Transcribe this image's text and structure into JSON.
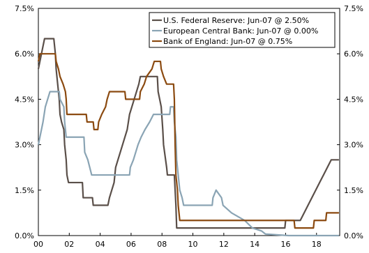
{
  "chart_data": {
    "type": "line",
    "xlim": [
      2000,
      2019.5
    ],
    "ylim": [
      0,
      7.5
    ],
    "x_ticks": [
      {
        "value": 2000,
        "label": "00"
      },
      {
        "value": 2002,
        "label": "02"
      },
      {
        "value": 2004,
        "label": "04"
      },
      {
        "value": 2006,
        "label": "06"
      },
      {
        "value": 2008,
        "label": "08"
      },
      {
        "value": 2010,
        "label": "10"
      },
      {
        "value": 2012,
        "label": "12"
      },
      {
        "value": 2014,
        "label": "14"
      },
      {
        "value": 2016,
        "label": "16"
      },
      {
        "value": 2018,
        "label": "18"
      }
    ],
    "y_ticks": [
      {
        "value": 0,
        "label": "0.0%"
      },
      {
        "value": 1.5,
        "label": "1.5%"
      },
      {
        "value": 3.0,
        "label": "3.0%"
      },
      {
        "value": 4.5,
        "label": "4.5%"
      },
      {
        "value": 6.0,
        "label": "6.0%"
      },
      {
        "value": 7.5,
        "label": "7.5%"
      }
    ],
    "legend_position": "top-right",
    "series": [
      {
        "name": "U.S. Federal Reserve: Jun-07 @ 2.50%",
        "color": "#5a4f49",
        "points": [
          [
            2000.0,
            5.5
          ],
          [
            2000.1,
            5.75
          ],
          [
            2000.2,
            6.0
          ],
          [
            2000.4,
            6.5
          ],
          [
            2001.0,
            6.5
          ],
          [
            2001.1,
            6.0
          ],
          [
            2001.15,
            5.5
          ],
          [
            2001.25,
            5.0
          ],
          [
            2001.35,
            4.5
          ],
          [
            2001.4,
            4.0
          ],
          [
            2001.5,
            3.75
          ],
          [
            2001.65,
            3.5
          ],
          [
            2001.7,
            3.0
          ],
          [
            2001.8,
            2.5
          ],
          [
            2001.85,
            2.0
          ],
          [
            2001.95,
            1.75
          ],
          [
            2002.85,
            1.75
          ],
          [
            2002.9,
            1.25
          ],
          [
            2003.5,
            1.25
          ],
          [
            2003.55,
            1.0
          ],
          [
            2004.5,
            1.0
          ],
          [
            2004.6,
            1.25
          ],
          [
            2004.75,
            1.5
          ],
          [
            2004.9,
            1.75
          ],
          [
            2005.0,
            2.25
          ],
          [
            2005.15,
            2.5
          ],
          [
            2005.3,
            2.75
          ],
          [
            2005.45,
            3.0
          ],
          [
            2005.6,
            3.25
          ],
          [
            2005.75,
            3.5
          ],
          [
            2005.9,
            4.0
          ],
          [
            2006.05,
            4.25
          ],
          [
            2006.2,
            4.5
          ],
          [
            2006.35,
            4.75
          ],
          [
            2006.5,
            5.0
          ],
          [
            2006.6,
            5.25
          ],
          [
            2007.7,
            5.25
          ],
          [
            2007.75,
            4.75
          ],
          [
            2007.85,
            4.5
          ],
          [
            2007.95,
            4.25
          ],
          [
            2008.05,
            3.5
          ],
          [
            2008.1,
            3.0
          ],
          [
            2008.3,
            2.25
          ],
          [
            2008.35,
            2.0
          ],
          [
            2008.8,
            2.0
          ],
          [
            2008.85,
            1.5
          ],
          [
            2008.9,
            1.0
          ],
          [
            2008.95,
            0.25
          ],
          [
            2015.95,
            0.25
          ],
          [
            2016.0,
            0.5
          ],
          [
            2016.95,
            0.5
          ],
          [
            2017.2,
            0.75
          ],
          [
            2017.45,
            1.0
          ],
          [
            2017.7,
            1.25
          ],
          [
            2017.95,
            1.5
          ],
          [
            2018.2,
            1.75
          ],
          [
            2018.45,
            2.0
          ],
          [
            2018.7,
            2.25
          ],
          [
            2018.95,
            2.5
          ],
          [
            2019.45,
            2.5
          ]
        ]
      },
      {
        "name": "European Central Bank: Jun-07 @ 0.00%",
        "color": "#8aa4b4",
        "points": [
          [
            2000.0,
            3.0
          ],
          [
            2000.1,
            3.25
          ],
          [
            2000.2,
            3.5
          ],
          [
            2000.3,
            3.75
          ],
          [
            2000.45,
            4.25
          ],
          [
            2000.6,
            4.5
          ],
          [
            2000.75,
            4.75
          ],
          [
            2001.35,
            4.75
          ],
          [
            2001.4,
            4.5
          ],
          [
            2001.65,
            4.25
          ],
          [
            2001.7,
            3.75
          ],
          [
            2001.8,
            3.25
          ],
          [
            2002.95,
            3.25
          ],
          [
            2003.0,
            2.75
          ],
          [
            2003.2,
            2.5
          ],
          [
            2003.45,
            2.0
          ],
          [
            2005.9,
            2.0
          ],
          [
            2005.95,
            2.25
          ],
          [
            2006.15,
            2.5
          ],
          [
            2006.3,
            2.75
          ],
          [
            2006.45,
            3.0
          ],
          [
            2006.65,
            3.25
          ],
          [
            2006.9,
            3.5
          ],
          [
            2007.2,
            3.75
          ],
          [
            2007.45,
            4.0
          ],
          [
            2008.5,
            4.0
          ],
          [
            2008.55,
            4.25
          ],
          [
            2008.75,
            4.25
          ],
          [
            2008.8,
            3.75
          ],
          [
            2008.9,
            3.25
          ],
          [
            2008.95,
            2.5
          ],
          [
            2009.05,
            2.0
          ],
          [
            2009.15,
            1.5
          ],
          [
            2009.3,
            1.25
          ],
          [
            2009.4,
            1.0
          ],
          [
            2011.25,
            1.0
          ],
          [
            2011.3,
            1.25
          ],
          [
            2011.5,
            1.5
          ],
          [
            2011.85,
            1.25
          ],
          [
            2011.95,
            1.0
          ],
          [
            2012.5,
            0.75
          ],
          [
            2013.35,
            0.5
          ],
          [
            2013.85,
            0.25
          ],
          [
            2014.45,
            0.15
          ],
          [
            2014.7,
            0.05
          ],
          [
            2016.2,
            0.0
          ],
          [
            2019.45,
            0.0
          ]
        ]
      },
      {
        "name": "Bank of England: Jun-07 @ 0.75%",
        "color": "#8b4a10",
        "points": [
          [
            2000.0,
            5.75
          ],
          [
            2000.1,
            6.0
          ],
          [
            2001.1,
            6.0
          ],
          [
            2001.15,
            5.75
          ],
          [
            2001.3,
            5.5
          ],
          [
            2001.4,
            5.25
          ],
          [
            2001.6,
            5.0
          ],
          [
            2001.75,
            4.75
          ],
          [
            2001.8,
            4.5
          ],
          [
            2001.85,
            4.0
          ],
          [
            2003.1,
            4.0
          ],
          [
            2003.15,
            3.75
          ],
          [
            2003.55,
            3.75
          ],
          [
            2003.6,
            3.5
          ],
          [
            2003.85,
            3.5
          ],
          [
            2003.9,
            3.75
          ],
          [
            2004.1,
            4.0
          ],
          [
            2004.35,
            4.25
          ],
          [
            2004.45,
            4.5
          ],
          [
            2004.6,
            4.75
          ],
          [
            2005.6,
            4.75
          ],
          [
            2005.65,
            4.5
          ],
          [
            2006.55,
            4.5
          ],
          [
            2006.6,
            4.75
          ],
          [
            2006.85,
            5.0
          ],
          [
            2007.0,
            5.25
          ],
          [
            2007.35,
            5.5
          ],
          [
            2007.5,
            5.75
          ],
          [
            2007.9,
            5.75
          ],
          [
            2007.95,
            5.5
          ],
          [
            2008.1,
            5.25
          ],
          [
            2008.3,
            5.0
          ],
          [
            2008.75,
            5.0
          ],
          [
            2008.8,
            4.5
          ],
          [
            2008.85,
            3.0
          ],
          [
            2008.9,
            2.0
          ],
          [
            2009.0,
            1.5
          ],
          [
            2009.05,
            1.0
          ],
          [
            2009.15,
            0.5
          ],
          [
            2016.55,
            0.5
          ],
          [
            2016.6,
            0.25
          ],
          [
            2017.8,
            0.25
          ],
          [
            2017.85,
            0.5
          ],
          [
            2018.6,
            0.5
          ],
          [
            2018.65,
            0.75
          ],
          [
            2019.45,
            0.75
          ]
        ]
      }
    ]
  }
}
